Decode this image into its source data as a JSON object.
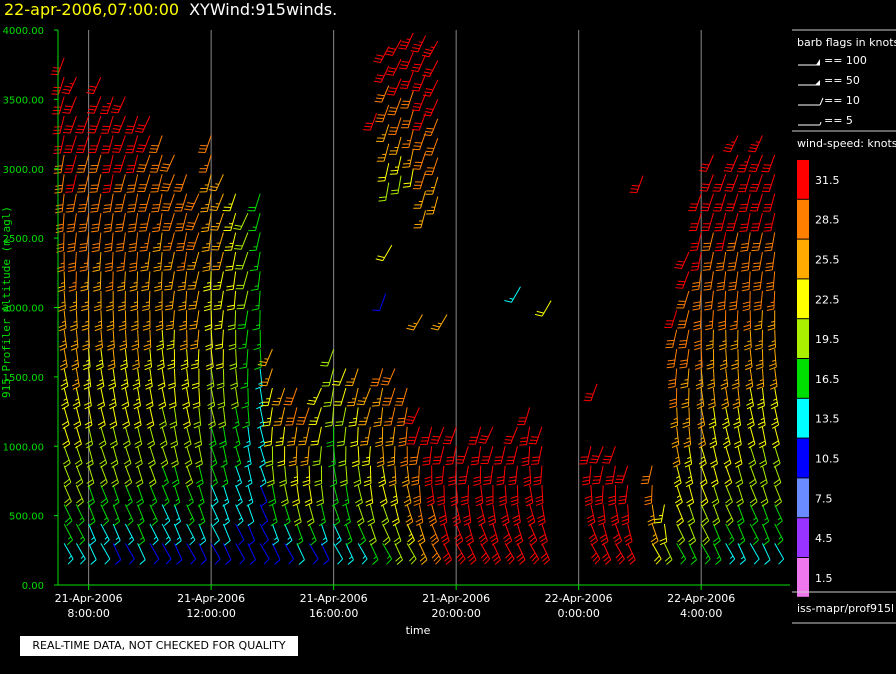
{
  "header": {
    "date": "22-apr-2006,07:00:00",
    "product": "XYWind:915winds."
  },
  "note": "REAL-TIME DATA, NOT CHECKED FOR QUALITY",
  "footer_source": "iss-mapr/prof915l",
  "chart_data": {
    "type": "wind-barb time-height",
    "xlabel": "time",
    "ylabel": "915 Profiler Altitude (m agl)",
    "ylim": [
      0,
      4000
    ],
    "yticks": [
      "0.00",
      "500.00",
      "1000.00",
      "1500.00",
      "2000.00",
      "2500.00",
      "3000.00",
      "3500.00",
      "4000.00"
    ],
    "xrange_hours": [
      7.0,
      30.9
    ],
    "xticks": [
      {
        "hour": 8,
        "date": "21-Apr-2006",
        "time": "8:00:00"
      },
      {
        "hour": 12,
        "date": "21-Apr-2006",
        "time": "12:00:00"
      },
      {
        "hour": 16,
        "date": "21-Apr-2006",
        "time": "16:00:00"
      },
      {
        "hour": 20,
        "date": "21-Apr-2006",
        "time": "20:00:00"
      },
      {
        "hour": 24,
        "date": "22-Apr-2006",
        "time": "0:00:00"
      },
      {
        "hour": 28,
        "date": "22-Apr-2006",
        "time": "4:00:00"
      }
    ],
    "grid": "vertical lines at major ticks",
    "barb_legend": {
      "title": "barb flags in knots",
      "entries": [
        {
          "label": "== 100",
          "kind": "triple-flag"
        },
        {
          "label": "== 50",
          "kind": "flag"
        },
        {
          "label": "== 10",
          "kind": "full-barb"
        },
        {
          "label": "== 5",
          "kind": "half-barb"
        }
      ]
    },
    "speed_legend": {
      "title": "wind-speed: knots",
      "bins": [
        {
          "label": "31.5",
          "color": "#ff0000"
        },
        {
          "label": "28.5",
          "color": "#ff7f00"
        },
        {
          "label": "25.5",
          "color": "#ffaa00"
        },
        {
          "label": "22.5",
          "color": "#ffff00"
        },
        {
          "label": "19.5",
          "color": "#aaee00"
        },
        {
          "label": "16.5",
          "color": "#00dd00"
        },
        {
          "label": "13.5",
          "color": "#00ffff"
        },
        {
          "label": "10.5",
          "color": "#0000ff"
        },
        {
          "label": "7.5",
          "color": "#6a8bff"
        },
        {
          "label": "4.5",
          "color": "#9933ff"
        },
        {
          "label": "1.5",
          "color": "#ee77ee"
        }
      ]
    },
    "profiles": [
      {
        "hour": 7.2,
        "top": 3800,
        "bottom": 300,
        "spd_top": 32,
        "spd_bot": 14,
        "dir_top": 200,
        "dir_bot": 150
      },
      {
        "hour": 7.6,
        "top": 3700,
        "bottom": 300,
        "spd_top": 33,
        "spd_bot": 13,
        "dir_top": 205,
        "dir_bot": 150
      },
      {
        "hour": 8.0,
        "top": 3400,
        "bottom": 300,
        "spd_top": 31,
        "spd_bot": 12,
        "dir_top": 200,
        "dir_bot": 155
      },
      {
        "hour": 8.4,
        "top": 3700,
        "bottom": 300,
        "spd_top": 32,
        "spd_bot": 12,
        "dir_top": 205,
        "dir_bot": 150
      },
      {
        "hour": 8.8,
        "top": 3600,
        "bottom": 300,
        "spd_top": 33,
        "spd_bot": 11,
        "dir_top": 200,
        "dir_bot": 155
      },
      {
        "hour": 9.2,
        "top": 3550,
        "bottom": 300,
        "spd_top": 32,
        "spd_bot": 11,
        "dir_top": 205,
        "dir_bot": 150
      },
      {
        "hour": 9.6,
        "top": 3500,
        "bottom": 300,
        "spd_top": 32,
        "spd_bot": 12,
        "dir_top": 200,
        "dir_bot": 155
      },
      {
        "hour": 10.0,
        "top": 3400,
        "bottom": 300,
        "spd_top": 31,
        "spd_bot": 11,
        "dir_top": 205,
        "dir_bot": 150
      },
      {
        "hour": 10.4,
        "top": 3300,
        "bottom": 300,
        "spd_top": 30,
        "spd_bot": 10,
        "dir_top": 200,
        "dir_bot": 150
      },
      {
        "hour": 10.8,
        "top": 3150,
        "bottom": 300,
        "spd_top": 30,
        "spd_bot": 10,
        "dir_top": 205,
        "dir_bot": 155
      },
      {
        "hour": 11.2,
        "top": 3000,
        "bottom": 300,
        "spd_top": 30,
        "spd_bot": 11,
        "dir_top": 200,
        "dir_bot": 150
      },
      {
        "hour": 11.6,
        "top": 2850,
        "bottom": 300,
        "spd_top": 29,
        "spd_bot": 10,
        "dir_top": 205,
        "dir_bot": 155
      },
      {
        "hour": 12.0,
        "top": 3300,
        "bottom": 300,
        "spd_top": 28,
        "spd_bot": 9,
        "dir_top": 200,
        "dir_bot": 150
      },
      {
        "hour": 12.4,
        "top": 3000,
        "bottom": 300,
        "spd_top": 27,
        "spd_bot": 9,
        "dir_top": 205,
        "dir_bot": 155
      },
      {
        "hour": 12.8,
        "top": 2900,
        "bottom": 300,
        "spd_top": 24,
        "spd_bot": 9,
        "dir_top": 200,
        "dir_bot": 150
      },
      {
        "hour": 13.2,
        "top": 2700,
        "bottom": 300,
        "spd_top": 20,
        "spd_bot": 9,
        "dir_top": 205,
        "dir_bot": 155
      },
      {
        "hour": 13.6,
        "top": 2950,
        "bottom": 300,
        "spd_top": 18,
        "spd_bot": 9,
        "dir_top": 200,
        "dir_bot": 150
      },
      {
        "hour": 14.0,
        "top": 1750,
        "bottom": 300,
        "spd_top": 26,
        "spd_bot": 10,
        "dir_top": 205,
        "dir_bot": 155
      },
      {
        "hour": 14.4,
        "top": 1450,
        "bottom": 300,
        "spd_top": 26,
        "spd_bot": 10,
        "dir_top": 200,
        "dir_bot": 150
      },
      {
        "hour": 14.8,
        "top": 1550,
        "bottom": 300,
        "spd_top": 30,
        "spd_bot": 12,
        "dir_top": 205,
        "dir_bot": 155
      },
      {
        "hour": 15.2,
        "top": 1300,
        "bottom": 300,
        "spd_top": 28,
        "spd_bot": 11,
        "dir_top": 200,
        "dir_bot": 150
      },
      {
        "hour": 15.6,
        "top": 1450,
        "bottom": 300,
        "spd_top": 24,
        "spd_bot": 11,
        "dir_top": 205,
        "dir_bot": 155
      },
      {
        "hour": 16.0,
        "top": 1700,
        "bottom": 300,
        "spd_top": 20,
        "spd_bot": 12,
        "dir_top": 200,
        "dir_bot": 150
      },
      {
        "hour": 16.4,
        "top": 1650,
        "bottom": 300,
        "spd_top": 22,
        "spd_bot": 13,
        "dir_top": 205,
        "dir_bot": 155
      },
      {
        "hour": 16.8,
        "top": 1600,
        "bottom": 300,
        "spd_top": 25,
        "spd_bot": 14,
        "dir_top": 200,
        "dir_bot": 150
      },
      {
        "hour": 17.2,
        "top": 1500,
        "bottom": 300,
        "spd_top": 27,
        "spd_bot": 15,
        "dir_top": 205,
        "dir_bot": 155
      },
      {
        "hour": 17.6,
        "top": 1650,
        "bottom": 300,
        "spd_top": 28,
        "spd_bot": 16,
        "dir_top": 200,
        "dir_bot": 150
      },
      {
        "hour": 18.0,
        "top": 1600,
        "bottom": 300,
        "spd_top": 29,
        "spd_bot": 18,
        "dir_top": 205,
        "dir_bot": 155
      },
      {
        "hour": 18.4,
        "top": 1500,
        "bottom": 300,
        "spd_top": 30,
        "spd_bot": 20,
        "dir_top": 200,
        "dir_bot": 150
      },
      {
        "hour": 18.8,
        "top": 1300,
        "bottom": 300,
        "spd_top": 31,
        "spd_bot": 24,
        "dir_top": 205,
        "dir_bot": 155
      },
      {
        "hour": 19.2,
        "top": 1250,
        "bottom": 300,
        "spd_top": 32,
        "spd_bot": 28,
        "dir_top": 200,
        "dir_bot": 150
      },
      {
        "hour": 19.6,
        "top": 1200,
        "bottom": 300,
        "spd_top": 32,
        "spd_bot": 30,
        "dir_top": 205,
        "dir_bot": 155
      },
      {
        "hour": 20.0,
        "top": 1150,
        "bottom": 300,
        "spd_top": 32,
        "spd_bot": 31,
        "dir_top": 200,
        "dir_bot": 150
      },
      {
        "hour": 20.4,
        "top": 1100,
        "bottom": 300,
        "spd_top": 32,
        "spd_bot": 31,
        "dir_top": 205,
        "dir_bot": 155
      },
      {
        "hour": 20.8,
        "top": 1200,
        "bottom": 300,
        "spd_top": 32,
        "spd_bot": 31,
        "dir_top": 200,
        "dir_bot": 150
      },
      {
        "hour": 21.2,
        "top": 1150,
        "bottom": 300,
        "spd_top": 32,
        "spd_bot": 31,
        "dir_top": 205,
        "dir_bot": 155
      },
      {
        "hour": 21.6,
        "top": 1100,
        "bottom": 300,
        "spd_top": 32,
        "spd_bot": 31,
        "dir_top": 200,
        "dir_bot": 150
      },
      {
        "hour": 22.0,
        "top": 1200,
        "bottom": 300,
        "spd_top": 32,
        "spd_bot": 31,
        "dir_top": 205,
        "dir_bot": 155
      },
      {
        "hour": 22.4,
        "top": 1350,
        "bottom": 300,
        "spd_top": 32,
        "spd_bot": 31,
        "dir_top": 200,
        "dir_bot": 150
      },
      {
        "hour": 22.8,
        "top": 1250,
        "bottom": 300,
        "spd_top": 32,
        "spd_bot": 31,
        "dir_top": 205,
        "dir_bot": 155
      },
      {
        "hour": 24.4,
        "top": 1100,
        "bottom": 300,
        "spd_top": 32,
        "spd_bot": 31,
        "dir_top": 200,
        "dir_bot": 150
      },
      {
        "hour": 24.8,
        "top": 1050,
        "bottom": 300,
        "spd_top": 32,
        "spd_bot": 31,
        "dir_top": 205,
        "dir_bot": 155
      },
      {
        "hour": 25.2,
        "top": 1000,
        "bottom": 300,
        "spd_top": 32,
        "spd_bot": 31,
        "dir_top": 200,
        "dir_bot": 150
      },
      {
        "hour": 25.6,
        "top": 950,
        "bottom": 300,
        "spd_top": 32,
        "spd_bot": 30,
        "dir_top": 205,
        "dir_bot": 155
      },
      {
        "hour": 26.4,
        "top": 950,
        "bottom": 300,
        "spd_top": 30,
        "spd_bot": 22,
        "dir_top": 200,
        "dir_bot": 150
      },
      {
        "hour": 26.8,
        "top": 700,
        "bottom": 300,
        "spd_top": 24,
        "spd_bot": 18,
        "dir_top": 205,
        "dir_bot": 155
      },
      {
        "hour": 27.2,
        "top": 2100,
        "bottom": 300,
        "spd_top": 31,
        "spd_bot": 17,
        "dir_top": 200,
        "dir_bot": 150
      },
      {
        "hour": 27.6,
        "top": 2450,
        "bottom": 300,
        "spd_top": 31,
        "spd_bot": 16,
        "dir_top": 205,
        "dir_bot": 155
      },
      {
        "hour": 28.0,
        "top": 2900,
        "bottom": 300,
        "spd_top": 32,
        "spd_bot": 16,
        "dir_top": 200,
        "dir_bot": 150
      },
      {
        "hour": 28.4,
        "top": 3200,
        "bottom": 300,
        "spd_top": 32,
        "spd_bot": 15,
        "dir_top": 205,
        "dir_bot": 155
      },
      {
        "hour": 28.8,
        "top": 3000,
        "bottom": 300,
        "spd_top": 32,
        "spd_bot": 14,
        "dir_top": 200,
        "dir_bot": 150
      },
      {
        "hour": 29.2,
        "top": 3250,
        "bottom": 300,
        "spd_top": 33,
        "spd_bot": 13,
        "dir_top": 205,
        "dir_bot": 155
      },
      {
        "hour": 29.6,
        "top": 3200,
        "bottom": 300,
        "spd_top": 33,
        "spd_bot": 12,
        "dir_top": 200,
        "dir_bot": 150
      },
      {
        "hour": 30.0,
        "top": 3300,
        "bottom": 300,
        "spd_top": 33,
        "spd_bot": 12,
        "dir_top": 205,
        "dir_bot": 155
      },
      {
        "hour": 30.4,
        "top": 3100,
        "bottom": 300,
        "spd_top": 32,
        "spd_bot": 12,
        "dir_top": 200,
        "dir_bot": 150
      }
    ],
    "upper_segments": [
      {
        "hour": 17.8,
        "top": 4000,
        "bottom": 2900,
        "spd_top": 33,
        "spd_bot": 18,
        "dir_top": 210,
        "dir_bot": 190
      },
      {
        "hour": 18.2,
        "top": 4000,
        "bottom": 2950,
        "spd_top": 33,
        "spd_bot": 20,
        "dir_top": 210,
        "dir_bot": 190
      },
      {
        "hour": 18.6,
        "top": 4000,
        "bottom": 3000,
        "spd_top": 33,
        "spd_bot": 22,
        "dir_top": 205,
        "dir_bot": 190
      },
      {
        "hour": 19.0,
        "top": 4000,
        "bottom": 2700,
        "spd_top": 33,
        "spd_bot": 24,
        "dir_top": 205,
        "dir_bot": 195
      },
      {
        "hour": 19.4,
        "top": 4000,
        "bottom": 2800,
        "spd_top": 33,
        "spd_bot": 24,
        "dir_top": 210,
        "dir_bot": 195
      }
    ],
    "isolated_barbs": [
      {
        "hour": 17.4,
        "alt": 3400,
        "spd": 31,
        "dir": 200
      },
      {
        "hour": 22.1,
        "alt": 2150,
        "spd": 14,
        "dir": 210
      },
      {
        "hour": 23.1,
        "alt": 2050,
        "spd": 22,
        "dir": 210
      },
      {
        "hour": 26.1,
        "alt": 2950,
        "spd": 31,
        "dir": 200
      },
      {
        "hour": 24.6,
        "alt": 1450,
        "spd": 31,
        "dir": 200
      },
      {
        "hour": 17.9,
        "alt": 2450,
        "spd": 22,
        "dir": 210
      },
      {
        "hour": 17.7,
        "alt": 2100,
        "spd": 10,
        "dir": 200
      },
      {
        "hour": 18.9,
        "alt": 1950,
        "spd": 24,
        "dir": 210
      },
      {
        "hour": 19.7,
        "alt": 1950,
        "spd": 24,
        "dir": 210
      }
    ]
  }
}
